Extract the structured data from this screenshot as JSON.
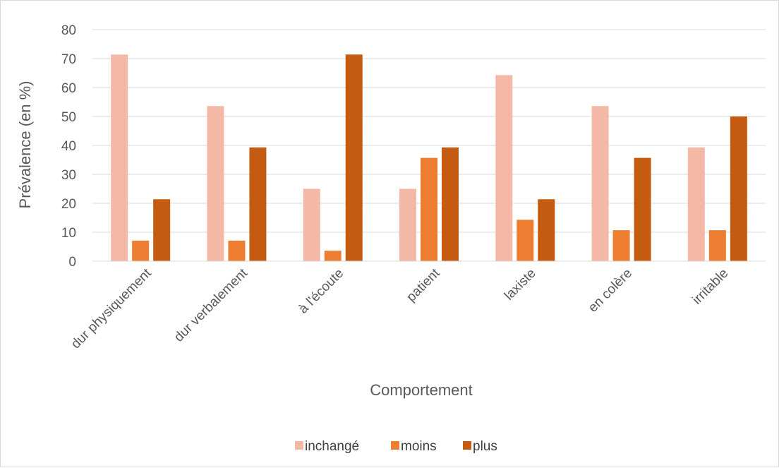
{
  "chart_data": {
    "type": "bar",
    "title": "",
    "xlabel": "Comportement",
    "ylabel": "Prévalence (en %)",
    "ylim": [
      0,
      80
    ],
    "yticks": [
      0,
      10,
      20,
      30,
      40,
      50,
      60,
      70,
      80
    ],
    "grid": true,
    "legend_position": "bottom",
    "categories": [
      "dur physiquement",
      "dur verbalement",
      "à l'écoute",
      "patient",
      "laxiste",
      "en colère",
      "irritable"
    ],
    "series": [
      {
        "name": "inchangé",
        "color": "#F4B9A6",
        "values": [
          71.4,
          53.6,
          25.0,
          25.0,
          64.3,
          53.6,
          39.3
        ]
      },
      {
        "name": "moins",
        "color": "#ED7D31",
        "values": [
          7.1,
          7.1,
          3.6,
          35.7,
          14.3,
          10.7,
          10.7
        ]
      },
      {
        "name": "plus",
        "color": "#C55A11",
        "values": [
          21.4,
          39.3,
          71.4,
          39.3,
          21.4,
          35.7,
          50.0
        ]
      }
    ]
  }
}
